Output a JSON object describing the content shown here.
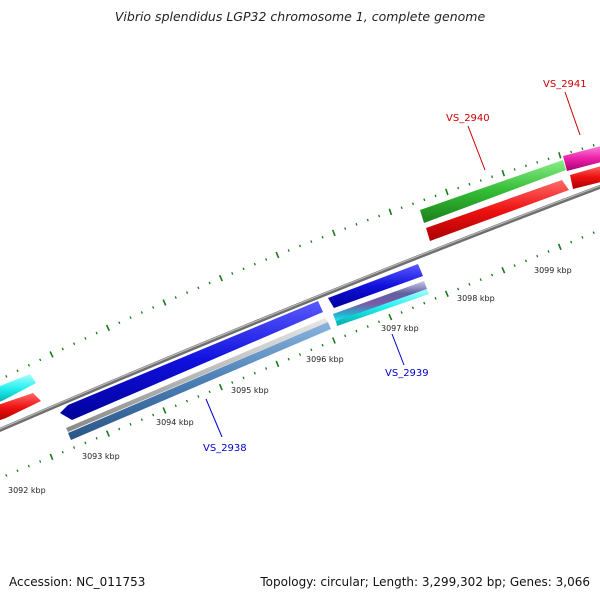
{
  "title": "Vibrio splendidus LGP32 chromosome 1, complete genome",
  "footer": {
    "accession": "Accession: NC_011753",
    "summary": "Topology: circular; Length: 3,299,302 bp; Genes: 3,066"
  },
  "scale_labels": [
    "3092 kbp",
    "3093 kbp",
    "3094 kbp",
    "3095 kbp",
    "3096 kbp",
    "3097 kbp",
    "3098 kbp",
    "3099 kbp"
  ],
  "gene_labels": [
    {
      "text": "VS_2938",
      "color": "#0000cc"
    },
    {
      "text": "VS_2939",
      "color": "#0000cc"
    },
    {
      "text": "VS_2940",
      "color": "#cc0000"
    },
    {
      "text": "VS_2941",
      "color": "#cc0000"
    }
  ],
  "colors": {
    "backbone": "#888888",
    "tick": "#1a7a1a",
    "forward_blue": "#1010dd",
    "cog_red": "#ee1111",
    "cog_green": "#33bb33",
    "cog_magenta": "#ee22aa",
    "cog_cyan": "#22eeee",
    "cog_steel": "#4a7fb5",
    "cog_grey": "#b0b0b0"
  }
}
